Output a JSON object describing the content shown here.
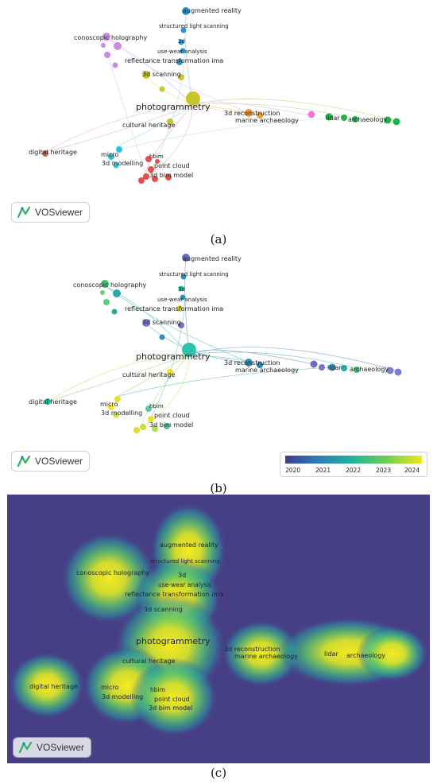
{
  "brand": "VOSviewer",
  "captions": {
    "a": "(a)",
    "b": "(b)",
    "c": "(c)"
  },
  "labels": {
    "augmented_reality": "augmented reality",
    "structured_light_scanning": "structured light scanning",
    "three_d": "3d",
    "use_wear_analysis": "use-wear analysis",
    "reflectance_transformation": "reflectance transformation ima",
    "conoscopic_holography": "conoscopic holography",
    "three_d_scanning": "3d scanning",
    "photogrammetry": "photogrammetry",
    "three_d_reconstruction": "3d reconstruction",
    "marine_archaeology": "marine archaeology",
    "cultural_heritage": "cultural heritage",
    "lidar": "lidar",
    "archaeology": "archaeology",
    "digital_heritage": "digital heritage",
    "micro": "micro",
    "three_d_modelling": "3d modelling",
    "hbim": "hbim",
    "point_cloud": "point cloud",
    "three_d_bim_model": "3d bim model"
  },
  "overlay_legend": {
    "ticks": [
      "2020",
      "2021",
      "2022",
      "2023",
      "2024"
    ],
    "gradient": [
      "#3b3f8f",
      "#2c7fb8",
      "#1fb59a",
      "#6fd04b",
      "#f2e51e"
    ]
  },
  "colors": {
    "cluster_blue": "#2e94d1",
    "cluster_purple": "#c58ee0",
    "cluster_yellowgreen": "#c7c72a",
    "cluster_orange": "#ef9a2e",
    "cluster_green": "#22b24c",
    "cluster_pink": "#f07ad8",
    "cluster_red": "#ea4b4b",
    "cluster_cyan": "#27c3d8",
    "cluster_brown": "#b36b5c",
    "density_background": "#473f86"
  }
}
